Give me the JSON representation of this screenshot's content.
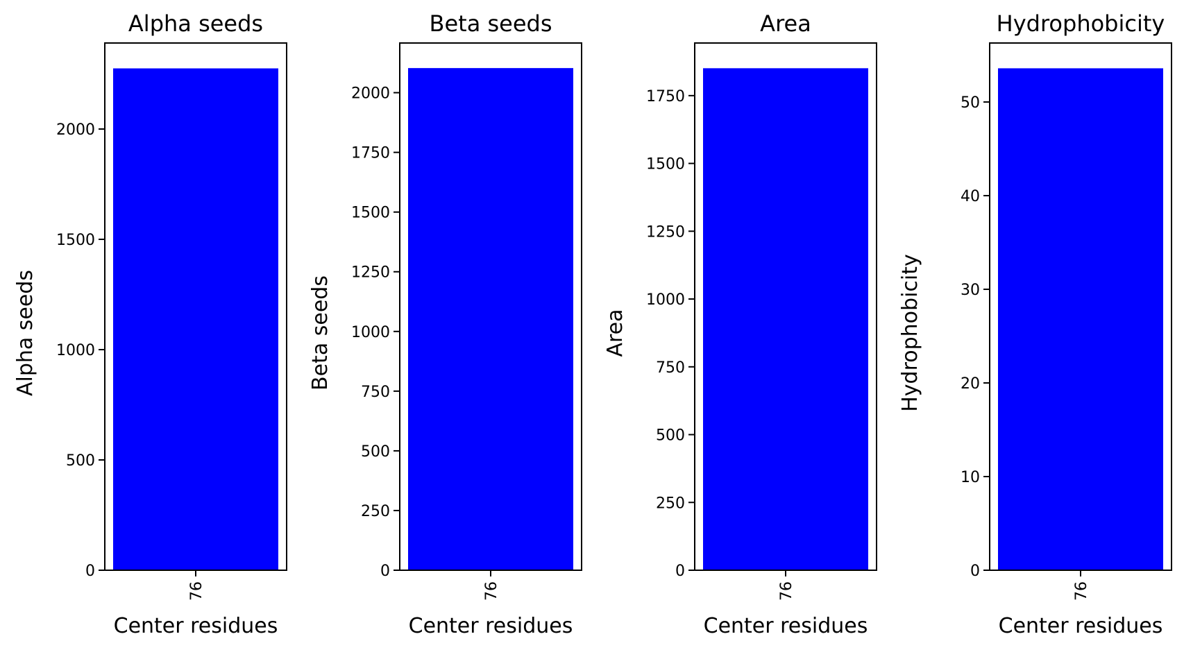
{
  "chart_data": [
    {
      "type": "bar",
      "title": "Alpha seeds",
      "xlabel": "Center residues",
      "ylabel": "Alpha seeds",
      "categories": [
        "76"
      ],
      "values": [
        2275
      ],
      "yticks": [
        0,
        500,
        1000,
        1500,
        2000
      ],
      "ylim": [
        0,
        2390
      ],
      "grid": false,
      "color": "#0000ff"
    },
    {
      "type": "bar",
      "title": "Beta seeds",
      "xlabel": "Center residues",
      "ylabel": "Beta seeds",
      "categories": [
        "76"
      ],
      "values": [
        2103
      ],
      "yticks": [
        0,
        250,
        500,
        750,
        1000,
        1250,
        1500,
        1750,
        2000
      ],
      "ylim": [
        0,
        2208
      ],
      "grid": false,
      "color": "#0000ff"
    },
    {
      "type": "bar",
      "title": "Area",
      "xlabel": "Center residues",
      "ylabel": "Area",
      "categories": [
        "76"
      ],
      "values": [
        1851
      ],
      "yticks": [
        0,
        250,
        500,
        750,
        1000,
        1250,
        1500,
        1750
      ],
      "ylim": [
        0,
        1944
      ],
      "grid": false,
      "color": "#0000ff"
    },
    {
      "type": "bar",
      "title": "Hydrophobicity",
      "xlabel": "Center residues",
      "ylabel": "Hydrophobicity",
      "categories": [
        "76"
      ],
      "values": [
        53.6
      ],
      "yticks": [
        0,
        10,
        20,
        30,
        40,
        50
      ],
      "ylim": [
        0,
        56.3
      ],
      "grid": false,
      "color": "#0000ff"
    }
  ]
}
